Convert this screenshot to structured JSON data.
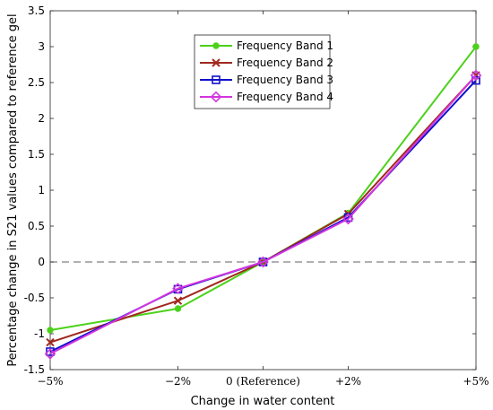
{
  "chart_data": {
    "type": "line",
    "xlabel": "Change in water content",
    "ylabel": "Percentage change in S21 values compared to reference gel",
    "categories": [
      "−5%",
      "−2%",
      "0 (Reference)",
      "+2%",
      "+5%"
    ],
    "x": [
      -5,
      -2,
      0,
      2,
      5
    ],
    "ylim": [
      -1.5,
      3.5
    ],
    "yticks": [
      -1.5,
      -1,
      -0.5,
      0,
      0.5,
      1,
      1.5,
      2,
      2.5,
      3,
      3.5
    ],
    "reference_line": {
      "y": 0,
      "style": "dashed",
      "color": "#808080"
    },
    "legend_position": "top-center",
    "series": [
      {
        "name": "Frequency Band 1",
        "color": "#4cd11b",
        "marker": "filled-circle",
        "values": [
          -0.95,
          -0.65,
          0,
          0.68,
          3.0
        ]
      },
      {
        "name": "Frequency Band 2",
        "color": "#a0291e",
        "marker": "x",
        "values": [
          -1.12,
          -0.54,
          0,
          0.67,
          2.6
        ]
      },
      {
        "name": "Frequency Band 3",
        "color": "#1010cc",
        "marker": "square",
        "values": [
          -1.25,
          -0.38,
          0,
          0.62,
          2.53
        ]
      },
      {
        "name": "Frequency Band 4",
        "color": "#d335e0",
        "marker": "diamond",
        "values": [
          -1.28,
          -0.37,
          0,
          0.6,
          2.6
        ]
      }
    ]
  }
}
